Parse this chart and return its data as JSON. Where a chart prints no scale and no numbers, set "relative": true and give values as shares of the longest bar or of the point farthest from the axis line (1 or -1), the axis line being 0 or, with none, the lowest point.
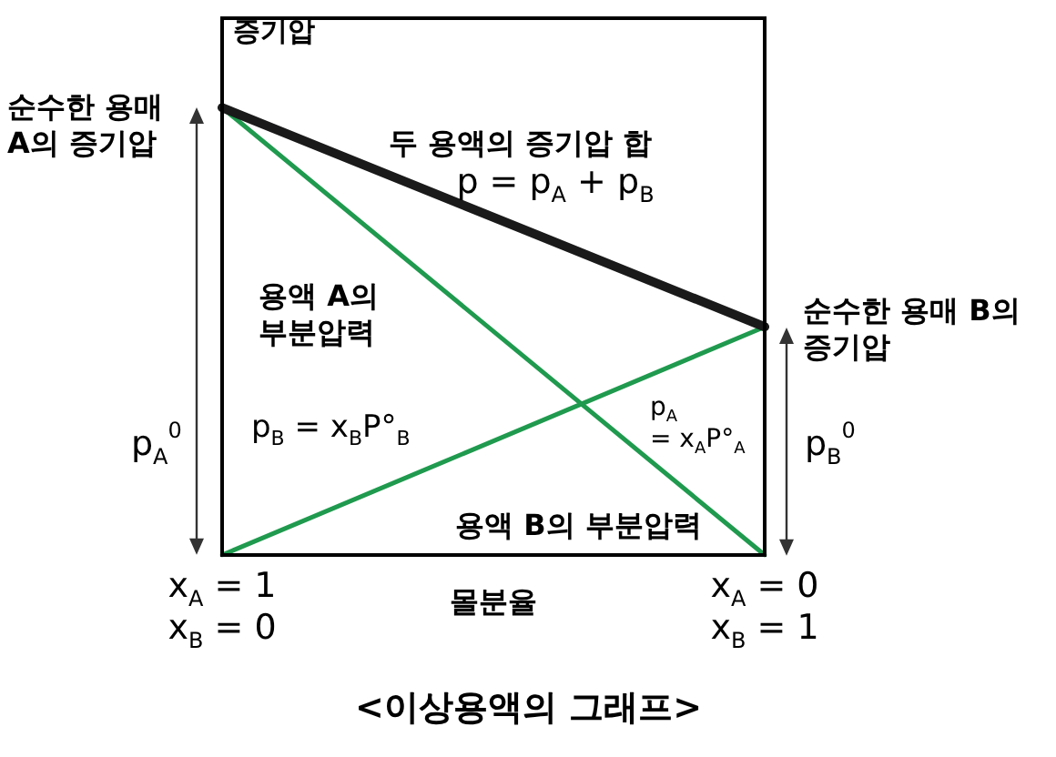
{
  "chart_data": {
    "type": "line",
    "relative": true,
    "title": "<이상용액의 그래프>",
    "xlabel": "몰분율",
    "ylabel": "증기압",
    "categories": [
      "x$_{A}$ = 1\nx$_{B}$ = 0",
      "x$_{A}$ = 0\nx$_{B}$ = 1"
    ],
    "line_style": "solid",
    "series": [
      {
        "color": "#1a1a1a",
        "values": [
          1,
          0.51
        ]
      },
      {
        "color": "#1f9a4e",
        "values": [
          1,
          0
        ]
      },
      {
        "color": "#1f9a4e",
        "values": [
          0,
          0.51
        ]
      }
    ],
    "annotations": [
      "순수한 용매\nA의 증기압",
      "두 용액의 증기압 합",
      "p = p$_{A}$ + p$_{B}$",
      "용액 A의\n부분압력",
      "순수한 용매 B의\n증기압",
      "p$_{A}$$^{0}$",
      "p$_{B}$$^{0}$",
      "p$_{B}$ = x$_{B}$P°$_{B}$",
      "용액 B의 부분압력",
      "p$_{A}$\n= x$_{A}$P°$_{A}$"
    ]
  }
}
